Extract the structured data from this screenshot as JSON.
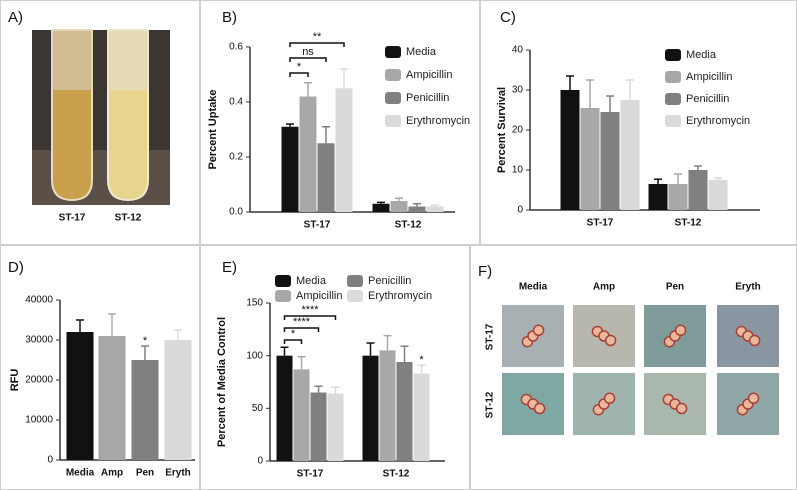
{
  "panels": {
    "A": {
      "label": "A)",
      "captions": [
        "ST-17",
        "ST-12"
      ]
    },
    "F": {
      "label": "F)",
      "columns": [
        "Media",
        "Amp",
        "Pen",
        "Eryth"
      ],
      "rows": [
        "ST-17",
        "ST-12"
      ]
    }
  },
  "chart_data": [
    {
      "type": "grouped_bar",
      "panel_label": "B)",
      "ylabel": "Percent Uptake",
      "categories": [
        "ST-17",
        "ST-12"
      ],
      "series": [
        {
          "name": "Media",
          "color": "#111111",
          "values": [
            0.31,
            0.03
          ],
          "errors": [
            0.01,
            0.005
          ]
        },
        {
          "name": "Ampicillin",
          "color": "#a8a8a8",
          "values": [
            0.42,
            0.04
          ],
          "errors": [
            0.05,
            0.01
          ]
        },
        {
          "name": "Penicillin",
          "color": "#808080",
          "values": [
            0.25,
            0.02
          ],
          "errors": [
            0.06,
            0.01
          ]
        },
        {
          "name": "Erythromycin",
          "color": "#dadada",
          "values": [
            0.45,
            0.02
          ],
          "errors": [
            0.07,
            0.005
          ]
        }
      ],
      "ylim": [
        0,
        0.6
      ],
      "yticks": [
        {
          "value": 0,
          "label": "0.0"
        },
        0.2,
        0.4,
        0.6
      ],
      "brackets": [
        "*",
        "ns",
        "**"
      ],
      "marks": []
    },
    {
      "type": "grouped_bar",
      "panel_label": "C)",
      "ylabel": "Percent Survival",
      "categories": [
        "ST-17",
        "ST-12"
      ],
      "series": [
        {
          "name": "Media",
          "color": "#111111",
          "values": [
            30,
            6.5
          ],
          "errors": [
            3.5,
            1.2
          ]
        },
        {
          "name": "Ampicillin",
          "color": "#a8a8a8",
          "values": [
            25.5,
            6.5
          ],
          "errors": [
            7,
            2.5
          ]
        },
        {
          "name": "Penicillin",
          "color": "#808080",
          "values": [
            24.5,
            10
          ],
          "errors": [
            4,
            1
          ]
        },
        {
          "name": "Erythromycin",
          "color": "#dadada",
          "values": [
            27.5,
            7.5
          ],
          "errors": [
            5,
            0.5
          ]
        }
      ],
      "ylim": [
        0,
        40
      ],
      "yticks": [
        0,
        10,
        20,
        30,
        40
      ],
      "brackets": [],
      "marks": []
    },
    {
      "type": "bar",
      "panel_label": "D)",
      "ylabel": "RFU",
      "categories": [
        "Media",
        "Amp",
        "Pen",
        "Eryth"
      ],
      "values": [
        32000,
        31000,
        25000,
        30000
      ],
      "errors": [
        3000,
        5500,
        3500,
        2500
      ],
      "colors": [
        "#111111",
        "#a8a8a8",
        "#808080",
        "#dadada"
      ],
      "ylim": [
        0,
        40000
      ],
      "yticks": [
        0,
        10000,
        20000,
        30000,
        40000
      ],
      "brackets": [],
      "marks": [
        {
          "text": "*",
          "category": "Pen"
        }
      ]
    },
    {
      "type": "grouped_bar",
      "panel_label": "E)",
      "ylabel": "Percent of Media Control",
      "categories": [
        "ST-17",
        "ST-12"
      ],
      "series": [
        {
          "name": "Media",
          "color": "#111111",
          "values": [
            100,
            100
          ],
          "errors": [
            8,
            12
          ]
        },
        {
          "name": "Ampicillin",
          "color": "#a8a8a8",
          "values": [
            87,
            105
          ],
          "errors": [
            12,
            14
          ]
        },
        {
          "name": "Penicillin",
          "color": "#808080",
          "values": [
            65,
            94
          ],
          "errors": [
            6,
            15
          ]
        },
        {
          "name": "Erythromycin",
          "color": "#dadada",
          "values": [
            64,
            83
          ],
          "errors": [
            6,
            8
          ]
        }
      ],
      "ylim": [
        0,
        150
      ],
      "yticks": [
        0,
        50,
        100,
        150
      ],
      "brackets": [
        "*",
        "****",
        "****"
      ],
      "marks": [
        {
          "text": "*",
          "category": "ST-12",
          "series": "Erythromycin"
        }
      ]
    }
  ]
}
